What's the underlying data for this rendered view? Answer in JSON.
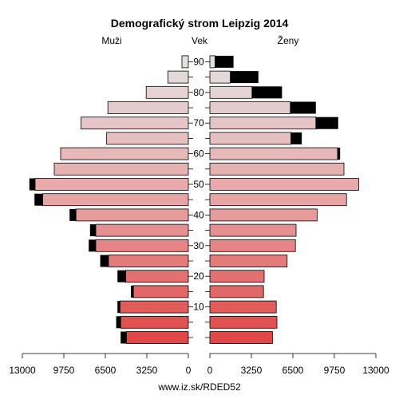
{
  "chart_data": {
    "type": "bar",
    "title": "Demografický strom Leipzig 2014",
    "left_label": "Muži",
    "center_label": "Vek",
    "right_label": "Ženy",
    "footer": "www.iz.sk/RDED52",
    "x_max": 13000,
    "x_ticks_left": [
      "13000",
      "9750",
      "6500",
      "3250",
      "0"
    ],
    "x_ticks_right": [
      "0",
      "3250",
      "6500",
      "9750",
      "13000"
    ],
    "age_ticks": [
      "10",
      "20",
      "30",
      "40",
      "50",
      "60",
      "70",
      "80",
      "90"
    ],
    "age_groups": [
      "0-4",
      "5-9",
      "10-14",
      "15-19",
      "20-24",
      "25-29",
      "30-34",
      "35-39",
      "40-44",
      "45-49",
      "50-54",
      "55-59",
      "60-64",
      "65-69",
      "70-74",
      "75-79",
      "80-84",
      "85-89",
      "90+"
    ],
    "series": [
      {
        "name": "Muži",
        "values": [
          4850,
          5300,
          5350,
          4300,
          4900,
          6250,
          7250,
          7250,
          8800,
          11400,
          12000,
          10500,
          10000,
          6400,
          8400,
          6300,
          3300,
          1600,
          500
        ]
      },
      {
        "name": "Ženy",
        "values": [
          4900,
          5250,
          5200,
          4200,
          4250,
          6050,
          6700,
          6750,
          8400,
          10700,
          11650,
          10500,
          10000,
          6350,
          8300,
          6300,
          3300,
          1600,
          400
        ]
      },
      {
        "name": "Muži excess",
        "values": [
          450,
          350,
          200,
          200,
          650,
          650,
          550,
          450,
          500,
          650,
          450,
          0,
          0,
          0,
          0,
          0,
          0,
          0,
          0
        ]
      },
      {
        "name": "Ženy excess",
        "values": [
          0,
          0,
          0,
          0,
          0,
          0,
          0,
          0,
          0,
          0,
          0,
          0,
          200,
          850,
          1750,
          2000,
          2350,
          2200,
          1450
        ]
      }
    ],
    "colors": {
      "excess": "#000000",
      "young": "#e04848",
      "middle": "#e7a4a4",
      "old": "#e4e0e0"
    }
  }
}
